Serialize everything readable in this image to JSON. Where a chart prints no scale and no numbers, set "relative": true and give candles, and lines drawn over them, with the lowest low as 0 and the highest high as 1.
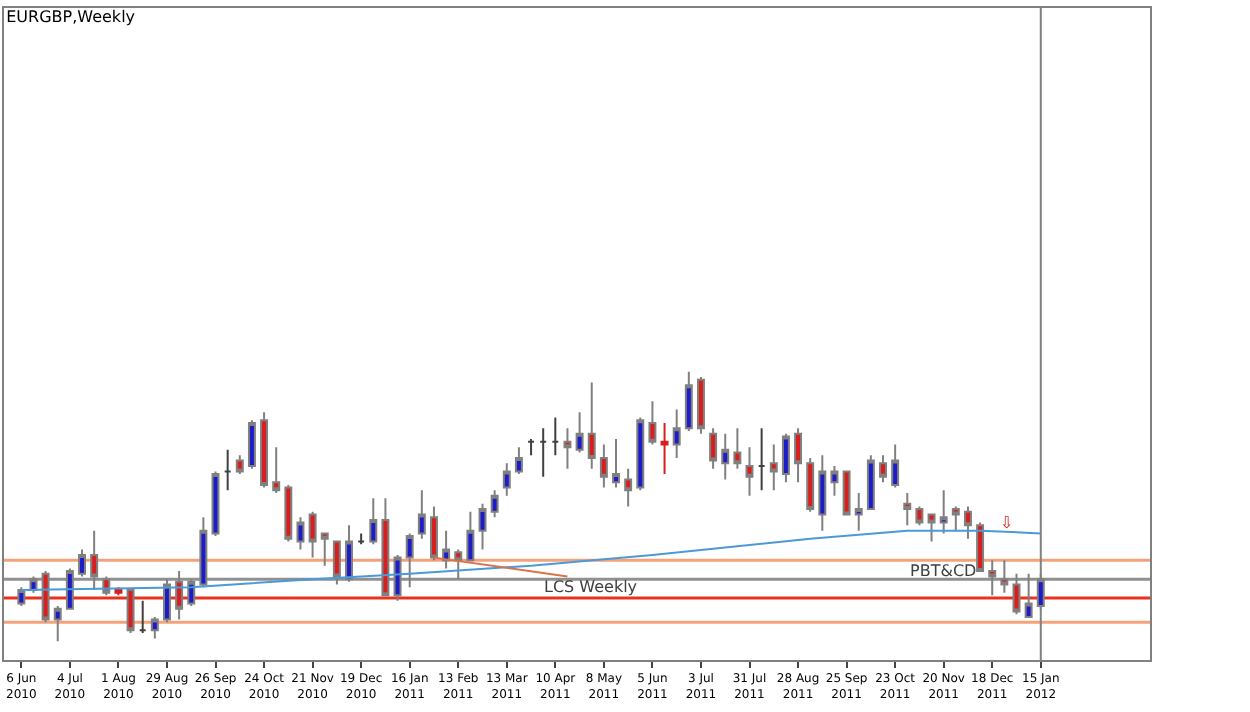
{
  "chart_data": {
    "type": "candlestick",
    "title": "EURGBP,Weekly",
    "relative": true,
    "grid": false,
    "tick_labels": "x",
    "x": [
      "2010-06-06",
      "2010-06-13",
      "2010-06-20",
      "2010-06-27",
      "2010-07-04",
      "2010-07-11",
      "2010-07-18",
      "2010-07-25",
      "2010-08-01",
      "2010-08-08",
      "2010-08-15",
      "2010-08-22",
      "2010-08-29",
      "2010-09-05",
      "2010-09-12",
      "2010-09-19",
      "2010-09-26",
      "2010-10-03",
      "2010-10-10",
      "2010-10-17",
      "2010-10-24",
      "2010-10-31",
      "2010-11-07",
      "2010-11-14",
      "2010-11-21",
      "2010-11-28",
      "2010-12-05",
      "2010-12-12",
      "2010-12-19",
      "2010-12-26",
      "2011-01-02",
      "2011-01-09",
      "2011-01-16",
      "2011-01-23",
      "2011-01-30",
      "2011-02-06",
      "2011-02-13",
      "2011-02-20",
      "2011-02-27",
      "2011-03-06",
      "2011-03-13",
      "2011-03-20",
      "2011-03-27",
      "2011-04-03",
      "2011-04-10",
      "2011-04-17",
      "2011-04-24",
      "2011-05-01",
      "2011-05-08",
      "2011-05-15",
      "2011-05-22",
      "2011-05-29",
      "2011-06-05",
      "2011-06-12",
      "2011-06-19",
      "2011-06-26",
      "2011-07-03",
      "2011-07-10",
      "2011-07-17",
      "2011-07-24",
      "2011-07-31",
      "2011-08-07",
      "2011-08-14",
      "2011-08-21",
      "2011-08-28",
      "2011-09-04",
      "2011-09-11",
      "2011-09-18",
      "2011-09-25",
      "2011-10-02",
      "2011-10-09",
      "2011-10-16",
      "2011-10-23",
      "2011-10-30",
      "2011-11-06",
      "2011-11-13",
      "2011-11-20",
      "2011-11-27",
      "2011-12-04",
      "2011-12-11",
      "2011-12-18",
      "2011-12-25",
      "2012-01-01",
      "2012-01-08",
      "2012-01-15"
    ],
    "ohlc": [
      [
        0.14,
        0.2,
        0.13,
        0.19
      ],
      [
        0.19,
        0.24,
        0.18,
        0.23
      ],
      [
        0.25,
        0.26,
        0.07,
        0.08
      ],
      [
        0.08,
        0.13,
        0,
        0.12
      ],
      [
        0.12,
        0.27,
        0.12,
        0.26
      ],
      [
        0.25,
        0.34,
        0.24,
        0.32
      ],
      [
        0.32,
        0.41,
        0.19,
        0.24
      ],
      [
        0.23,
        0.24,
        0.17,
        0.18
      ],
      [
        0.19,
        0.2,
        0.17,
        0.18
      ],
      [
        0.19,
        0.19,
        0.03,
        0.04
      ],
      [
        0.04,
        0.15,
        0.03,
        0.04
      ],
      [
        0.04,
        0.09,
        0.01,
        0.08
      ],
      [
        0.08,
        0.23,
        0.07,
        0.21
      ],
      [
        0.22,
        0.26,
        0.08,
        0.12
      ],
      [
        0.14,
        0.23,
        0.13,
        0.22
      ],
      [
        0.21,
        0.46,
        0.2,
        0.41
      ],
      [
        0.4,
        0.63,
        0.39,
        0.62
      ],
      [
        0.63,
        0.71,
        0.56,
        0.63
      ],
      [
        0.67,
        0.69,
        0.62,
        0.63
      ],
      [
        0.65,
        0.82,
        0.64,
        0.81
      ],
      [
        0.82,
        0.85,
        0.57,
        0.58
      ],
      [
        0.59,
        0.72,
        0.55,
        0.56
      ],
      [
        0.57,
        0.58,
        0.37,
        0.38
      ],
      [
        0.37,
        0.46,
        0.34,
        0.44
      ],
      [
        0.47,
        0.48,
        0.31,
        0.37
      ],
      [
        0.4,
        0.4,
        0.28,
        0.38
      ],
      [
        0.37,
        0.37,
        0.21,
        0.24
      ],
      [
        0.23,
        0.43,
        0.22,
        0.37
      ],
      [
        0.37,
        0.4,
        0.36,
        0.37
      ],
      [
        0.37,
        0.53,
        0.36,
        0.45
      ],
      [
        0.45,
        0.53,
        0.17,
        0.17
      ],
      [
        0.17,
        0.32,
        0.15,
        0.31
      ],
      [
        0.31,
        0.4,
        0.2,
        0.39
      ],
      [
        0.4,
        0.56,
        0.38,
        0.47
      ],
      [
        0.46,
        0.5,
        0.3,
        0.31
      ],
      [
        0.3,
        0.41,
        0.27,
        0.34
      ],
      [
        0.33,
        0.34,
        0.23,
        0.3
      ],
      [
        0.3,
        0.48,
        0.3,
        0.41
      ],
      [
        0.41,
        0.51,
        0.34,
        0.49
      ],
      [
        0.48,
        0.56,
        0.46,
        0.54
      ],
      [
        0.57,
        0.66,
        0.54,
        0.63
      ],
      [
        0.63,
        0.72,
        0.62,
        0.68
      ],
      [
        0.74,
        0.75,
        0.69,
        0.74
      ],
      [
        0.74,
        0.79,
        0.61,
        0.74
      ],
      [
        0.74,
        0.83,
        0.69,
        0.74
      ],
      [
        0.74,
        0.79,
        0.64,
        0.72
      ],
      [
        0.71,
        0.85,
        0.7,
        0.77
      ],
      [
        0.77,
        0.96,
        0.64,
        0.68
      ],
      [
        0.68,
        0.73,
        0.57,
        0.61
      ],
      [
        0.59,
        0.75,
        0.57,
        0.62
      ],
      [
        0.6,
        0.64,
        0.5,
        0.56
      ],
      [
        0.57,
        0.83,
        0.56,
        0.82
      ],
      [
        0.81,
        0.89,
        0.73,
        0.74
      ],
      [
        0.74,
        0.81,
        0.62,
        0.73
      ],
      [
        0.73,
        0.86,
        0.68,
        0.79
      ],
      [
        0.79,
        1,
        0.78,
        0.95
      ],
      [
        0.97,
        0.98,
        0.77,
        0.79
      ],
      [
        0.77,
        0.79,
        0.64,
        0.67
      ],
      [
        0.66,
        0.77,
        0.6,
        0.71
      ],
      [
        0.7,
        0.79,
        0.64,
        0.66
      ],
      [
        0.65,
        0.72,
        0.54,
        0.61
      ],
      [
        0.65,
        0.79,
        0.56,
        0.65
      ],
      [
        0.66,
        0.73,
        0.56,
        0.63
      ],
      [
        0.62,
        0.77,
        0.59,
        0.76
      ],
      [
        0.77,
        0.79,
        0.59,
        0.66
      ],
      [
        0.66,
        0.68,
        0.48,
        0.49
      ],
      [
        0.47,
        0.69,
        0.41,
        0.63
      ],
      [
        0.59,
        0.65,
        0.54,
        0.63
      ],
      [
        0.63,
        0.63,
        0.47,
        0.47
      ],
      [
        0.47,
        0.55,
        0.41,
        0.49
      ],
      [
        0.49,
        0.69,
        0.49,
        0.67
      ],
      [
        0.66,
        0.69,
        0.59,
        0.61
      ],
      [
        0.58,
        0.73,
        0.57,
        0.67
      ],
      [
        0.51,
        0.55,
        0.43,
        0.49
      ],
      [
        0.49,
        0.5,
        0.43,
        0.44
      ],
      [
        0.47,
        0.47,
        0.37,
        0.44
      ],
      [
        0.44,
        0.56,
        0.4,
        0.46
      ],
      [
        0.49,
        0.5,
        0.41,
        0.47
      ],
      [
        0.48,
        0.5,
        0.38,
        0.43
      ],
      [
        0.43,
        0.44,
        0.26,
        0.26
      ],
      [
        0.26,
        0.3,
        0.17,
        0.24
      ],
      [
        0.23,
        0.3,
        0.18,
        0.21
      ],
      [
        0.21,
        0.25,
        0.1,
        0.11
      ],
      [
        0.09,
        0.25,
        0.09,
        0.14
      ],
      [
        0.13,
        0.25,
        0.12,
        0.23
      ]
    ],
    "colors": [
      "#1c1cc8",
      "#1c1cc8",
      "#d91e1e",
      "#1c1cc8",
      "#1c1cc8",
      "#1c1cc8",
      "#d91e1e",
      "#d91e1e",
      "#d91e1e",
      "#d91e1e",
      "#404040",
      "#1c1cc8",
      "#1c1cc8",
      "#d91e1e",
      "#1c1cc8",
      "#1c1cc8",
      "#1c1cc8",
      "#404040",
      "#d91e1e",
      "#1c1cc8",
      "#d91e1e",
      "#d91e1e",
      "#d91e1e",
      "#1c1cc8",
      "#d91e1e",
      "#d91e1e",
      "#d91e1e",
      "#1c1cc8",
      "#404040",
      "#1c1cc8",
      "#d91e1e",
      "#1c1cc8",
      "#1c1cc8",
      "#1c1cc8",
      "#d91e1e",
      "#1c1cc8",
      "#d91e1e",
      "#1c1cc8",
      "#1c1cc8",
      "#1c1cc8",
      "#1c1cc8",
      "#1c1cc8",
      "#404040",
      "#404040",
      "#404040",
      "#d91e1e",
      "#1c1cc8",
      "#d91e1e",
      "#d91e1e",
      "#1c1cc8",
      "#d91e1e",
      "#1c1cc8",
      "#d91e1e",
      "#d91e1e",
      "#1c1cc8",
      "#1c1cc8",
      "#d91e1e",
      "#d91e1e",
      "#1c1cc8",
      "#d91e1e",
      "#d91e1e",
      "#404040",
      "#d91e1e",
      "#1c1cc8",
      "#d91e1e",
      "#d91e1e",
      "#1c1cc8",
      "#1c1cc8",
      "#d91e1e",
      "#1c1cc8",
      "#1c1cc8",
      "#d91e1e",
      "#1c1cc8",
      "#d91e1e",
      "#d91e1e",
      "#d91e1e",
      "#1c1cc8",
      "#d91e1e",
      "#d91e1e",
      "#d91e1e",
      "#d91e1e",
      "#d91e1e",
      "#d91e1e",
      "#1c1cc8",
      "#1c1cc8"
    ],
    "series": [
      {
        "type": "line",
        "color": "#4a9ad8",
        "x": [
          "2010-06-06",
          "2010-09-12",
          "2010-11-21",
          "2011-01-16",
          "2011-03-27",
          "2011-06-05",
          "2011-09-04",
          "2011-10-30",
          "2011-12-11",
          "2012-01-15"
        ],
        "values": [
          0.19,
          0.2,
          0.23,
          0.25,
          0.28,
          0.32,
          0.38,
          0.41,
          0.41,
          0.4
        ]
      },
      {
        "type": "line",
        "color": "#d9734a",
        "x": [
          "2011-01-30",
          "2011-04-17"
        ],
        "values": [
          0.31,
          0.24
        ]
      }
    ],
    "ref_lines": [
      {
        "axis": "y",
        "value": 0.3,
        "color": "#f5a27a"
      },
      {
        "axis": "y",
        "value": 0.23,
        "color": "#909090"
      },
      {
        "axis": "y",
        "value": 0.16,
        "color": "#e8321e"
      },
      {
        "axis": "y",
        "value": 0.07,
        "color": "#f5a27a"
      },
      {
        "axis": "x",
        "value": "2012-01-15",
        "color": "#808080"
      }
    ],
    "annotations": [
      {
        "text": "LCS Weekly",
        "x": "2011-05-01",
        "y": 0.2
      },
      {
        "text": "PBT&CD",
        "x": "2011-11-20",
        "y": 0.26
      },
      "⇩"
    ],
    "xlim": [
      "2010-05-27",
      "2012-03-18"
    ],
    "xticks": [
      {
        "value": "2010-06-06",
        "label": "6 Jun 2010"
      },
      {
        "value": "2010-07-04",
        "label": "4 Jul 2010"
      },
      {
        "value": "2010-08-01",
        "label": "1 Aug 2010"
      },
      {
        "value": "2010-08-29",
        "label": "29 Aug 2010"
      },
      {
        "value": "2010-09-26",
        "label": "26 Sep 2010"
      },
      {
        "value": "2010-10-24",
        "label": "24 Oct 2010"
      },
      {
        "value": "2010-11-21",
        "label": "21 Nov 2010"
      },
      {
        "value": "2010-12-19",
        "label": "19 Dec 2010"
      },
      {
        "value": "2011-01-16",
        "label": "16 Jan 2011"
      },
      {
        "value": "2011-02-13",
        "label": "13 Feb 2011"
      },
      {
        "value": "2011-03-13",
        "label": "13 Mar 2011"
      },
      {
        "value": "2011-04-10",
        "label": "10 Apr 2011"
      },
      {
        "value": "2011-05-08",
        "label": "8 May 2011"
      },
      {
        "value": "2011-06-05",
        "label": "5 Jun 2011"
      },
      {
        "value": "2011-07-03",
        "label": "3 Jul 2011"
      },
      {
        "value": "2011-07-31",
        "label": "31 Jul 2011"
      },
      {
        "value": "2011-08-28",
        "label": "28 Aug 2011"
      },
      {
        "value": "2011-09-25",
        "label": "25 Sep 2011"
      },
      {
        "value": "2011-10-23",
        "label": "23 Oct 2011"
      },
      {
        "value": "2011-11-20",
        "label": "20 Nov 2011"
      },
      {
        "value": "2011-12-18",
        "label": "18 Dec 2011"
      },
      {
        "value": "2012-01-15",
        "label": "15 Jan 2012"
      }
    ]
  }
}
